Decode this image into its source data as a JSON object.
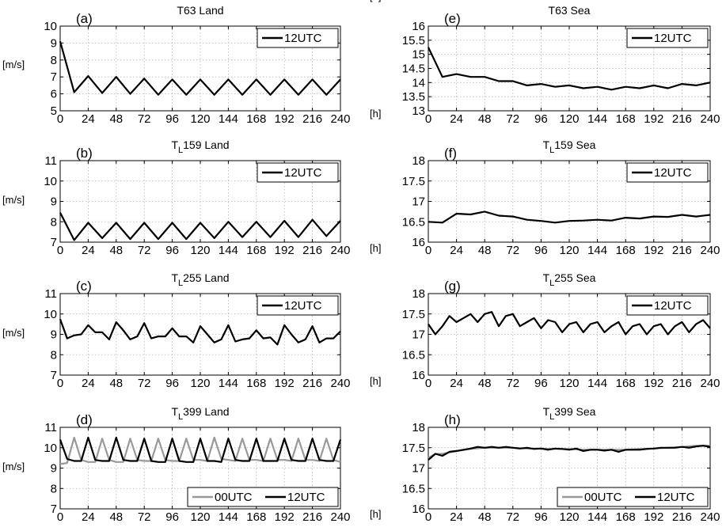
{
  "chart_data": [
    {
      "type": "line",
      "panel_label": "(a)",
      "title_prefix": "",
      "title_sub": "",
      "title_rest": "T63 Land",
      "ylabel": "[m/s]",
      "xlabel": "",
      "ylim": [
        5,
        10
      ],
      "yticks": [
        5,
        6,
        7,
        8,
        9,
        10
      ],
      "xlim": [
        0,
        240
      ],
      "xticks": [
        0,
        24,
        48,
        72,
        96,
        120,
        144,
        168,
        192,
        216,
        240
      ],
      "grid": true,
      "legend_position": "top-right",
      "series": [
        {
          "name": "12UTC",
          "color": "#000000",
          "x": [
            0,
            12,
            24,
            36,
            48,
            60,
            72,
            84,
            96,
            108,
            120,
            132,
            144,
            156,
            168,
            180,
            192,
            204,
            216,
            228,
            240
          ],
          "y": [
            9.1,
            6.1,
            7.05,
            6.05,
            7.0,
            6.0,
            6.9,
            5.95,
            6.85,
            5.95,
            6.85,
            5.95,
            6.85,
            5.95,
            6.85,
            5.95,
            6.85,
            5.95,
            6.85,
            5.95,
            6.85
          ]
        }
      ]
    },
    {
      "type": "line",
      "panel_label": "(b)",
      "title_prefix": "T",
      "title_sub": "L",
      "title_rest": "159 Land",
      "ylabel": "[m/s]",
      "xlabel": "",
      "ylim": [
        7,
        11
      ],
      "yticks": [
        7,
        8,
        9,
        10,
        11
      ],
      "xlim": [
        0,
        240
      ],
      "xticks": [
        0,
        24,
        48,
        72,
        96,
        120,
        144,
        168,
        192,
        216,
        240
      ],
      "grid": true,
      "legend_position": "top-right",
      "series": [
        {
          "name": "12UTC",
          "color": "#000000",
          "x": [
            0,
            12,
            24,
            36,
            48,
            60,
            72,
            84,
            96,
            108,
            120,
            132,
            144,
            156,
            168,
            180,
            192,
            204,
            216,
            228,
            240
          ],
          "y": [
            8.45,
            7.1,
            7.95,
            7.2,
            7.95,
            7.15,
            7.95,
            7.15,
            7.95,
            7.15,
            7.95,
            7.2,
            8.0,
            7.25,
            8.0,
            7.25,
            8.05,
            7.25,
            8.1,
            7.3,
            8.05
          ]
        }
      ]
    },
    {
      "type": "line",
      "panel_label": "(c)",
      "title_prefix": "T",
      "title_sub": "L",
      "title_rest": "255 Land",
      "ylabel": "[m/s]",
      "xlabel": "",
      "ylim": [
        7,
        11
      ],
      "yticks": [
        7,
        8,
        9,
        10,
        11
      ],
      "xlim": [
        0,
        240
      ],
      "xticks": [
        0,
        24,
        48,
        72,
        96,
        120,
        144,
        168,
        192,
        216,
        240
      ],
      "grid": true,
      "legend_position": "top-right",
      "series": [
        {
          "name": "12UTC",
          "color": "#000000",
          "x": [
            0,
            6,
            12,
            18,
            24,
            30,
            36,
            42,
            48,
            54,
            60,
            66,
            72,
            78,
            84,
            90,
            96,
            102,
            108,
            114,
            120,
            126,
            132,
            138,
            144,
            150,
            156,
            162,
            168,
            174,
            180,
            186,
            192,
            198,
            204,
            210,
            216,
            222,
            228,
            234,
            240
          ],
          "y": [
            9.75,
            8.8,
            8.95,
            9.0,
            9.45,
            9.1,
            9.1,
            8.75,
            9.6,
            9.2,
            8.75,
            8.9,
            9.55,
            8.8,
            8.9,
            8.9,
            9.3,
            8.9,
            8.9,
            8.6,
            9.4,
            9.0,
            8.6,
            8.75,
            9.45,
            8.65,
            8.75,
            8.8,
            9.2,
            8.8,
            8.85,
            8.5,
            9.45,
            9.0,
            8.6,
            8.75,
            9.4,
            8.6,
            8.8,
            8.8,
            9.15
          ]
        }
      ]
    },
    {
      "type": "line",
      "panel_label": "(d)",
      "title_prefix": "T",
      "title_sub": "L",
      "title_rest": "399 Land",
      "ylabel": "[m/s]",
      "xlabel": "[h]",
      "ylim": [
        7,
        11
      ],
      "yticks": [
        7,
        8,
        9,
        10,
        11
      ],
      "xlim": [
        0,
        240
      ],
      "xticks": [
        0,
        24,
        48,
        72,
        96,
        120,
        144,
        168,
        192,
        216,
        240
      ],
      "grid": true,
      "legend_position": "bottom-right",
      "series": [
        {
          "name": "00UTC",
          "color": "#999999",
          "x": [
            0,
            6,
            12,
            18,
            24,
            30,
            36,
            42,
            48,
            54,
            60,
            66,
            72,
            78,
            84,
            90,
            96,
            102,
            108,
            114,
            120,
            126,
            132,
            138,
            144,
            150,
            156,
            162,
            168,
            174,
            180,
            186,
            192,
            198,
            204,
            210,
            216,
            222,
            228,
            234,
            240
          ],
          "y": [
            9.2,
            9.25,
            10.5,
            9.4,
            9.3,
            9.3,
            10.45,
            9.4,
            9.3,
            9.3,
            10.45,
            9.4,
            9.35,
            9.35,
            10.45,
            9.4,
            9.35,
            9.35,
            10.45,
            9.4,
            9.4,
            9.35,
            10.5,
            9.45,
            9.4,
            9.35,
            10.45,
            9.4,
            9.4,
            9.35,
            10.45,
            9.4,
            9.4,
            9.35,
            10.45,
            9.4,
            9.4,
            9.35,
            10.45,
            9.4,
            9.3
          ]
        },
        {
          "name": "12UTC",
          "color": "#000000",
          "x": [
            0,
            6,
            12,
            18,
            24,
            30,
            36,
            42,
            48,
            54,
            60,
            66,
            72,
            78,
            84,
            90,
            96,
            102,
            108,
            114,
            120,
            126,
            132,
            138,
            144,
            150,
            156,
            162,
            168,
            174,
            180,
            186,
            192,
            198,
            204,
            210,
            216,
            222,
            228,
            234,
            240
          ],
          "y": [
            10.4,
            9.45,
            9.35,
            9.35,
            10.5,
            9.4,
            9.35,
            9.35,
            10.5,
            9.4,
            9.35,
            9.35,
            10.45,
            9.35,
            9.3,
            9.3,
            10.45,
            9.35,
            9.3,
            9.3,
            10.45,
            9.35,
            9.35,
            9.3,
            10.45,
            9.4,
            9.35,
            9.35,
            10.45,
            9.35,
            9.35,
            9.35,
            10.45,
            9.4,
            9.35,
            9.35,
            10.45,
            9.4,
            9.35,
            9.35,
            10.4
          ]
        }
      ]
    },
    {
      "type": "line",
      "panel_label": "(e)",
      "title_prefix": "",
      "title_sub": "",
      "title_rest": "T63 Sea",
      "ylabel": "",
      "xlabel": "[h]",
      "ylim": [
        13,
        16
      ],
      "yticks": [
        13,
        13.5,
        14,
        14.5,
        15,
        15.5,
        16
      ],
      "xlim": [
        0,
        240
      ],
      "xticks": [
        0,
        24,
        48,
        72,
        96,
        120,
        144,
        168,
        192,
        216,
        240
      ],
      "grid": true,
      "legend_position": "top-right",
      "series": [
        {
          "name": "12UTC",
          "color": "#000000",
          "x": [
            0,
            12,
            24,
            36,
            48,
            60,
            72,
            84,
            96,
            108,
            120,
            132,
            144,
            156,
            168,
            180,
            192,
            204,
            216,
            228,
            240
          ],
          "y": [
            15.25,
            14.2,
            14.3,
            14.2,
            14.2,
            14.05,
            14.05,
            13.9,
            13.95,
            13.85,
            13.9,
            13.8,
            13.85,
            13.75,
            13.85,
            13.8,
            13.9,
            13.8,
            13.95,
            13.9,
            14.0
          ]
        }
      ]
    },
    {
      "type": "line",
      "panel_label": "(f)",
      "title_prefix": "T",
      "title_sub": "L",
      "title_rest": "159 Sea",
      "ylabel": "",
      "xlabel": "[h]",
      "ylim": [
        16,
        18
      ],
      "yticks": [
        16,
        16.5,
        17,
        17.5,
        18
      ],
      "xlim": [
        0,
        240
      ],
      "xticks": [
        0,
        24,
        48,
        72,
        96,
        120,
        144,
        168,
        192,
        216,
        240
      ],
      "grid": true,
      "legend_position": "top-right",
      "series": [
        {
          "name": "12UTC",
          "color": "#000000",
          "x": [
            0,
            12,
            24,
            36,
            48,
            60,
            72,
            84,
            96,
            108,
            120,
            132,
            144,
            156,
            168,
            180,
            192,
            204,
            216,
            228,
            240
          ],
          "y": [
            16.5,
            16.48,
            16.7,
            16.68,
            16.75,
            16.65,
            16.63,
            16.55,
            16.52,
            16.48,
            16.52,
            16.53,
            16.55,
            16.53,
            16.6,
            16.58,
            16.63,
            16.62,
            16.67,
            16.63,
            16.67
          ]
        }
      ]
    },
    {
      "type": "line",
      "panel_label": "(g)",
      "title_prefix": "T",
      "title_sub": "L",
      "title_rest": "255 Sea",
      "ylabel": "",
      "xlabel": "[h]",
      "ylim": [
        16,
        18
      ],
      "yticks": [
        16,
        16.5,
        17,
        17.5,
        18
      ],
      "xlim": [
        0,
        240
      ],
      "xticks": [
        0,
        24,
        48,
        72,
        96,
        120,
        144,
        168,
        192,
        216,
        240
      ],
      "grid": true,
      "legend_position": "top-right",
      "series": [
        {
          "name": "12UTC",
          "color": "#000000",
          "x": [
            0,
            6,
            12,
            18,
            24,
            30,
            36,
            42,
            48,
            54,
            60,
            66,
            72,
            78,
            84,
            90,
            96,
            102,
            108,
            114,
            120,
            126,
            132,
            138,
            144,
            150,
            156,
            162,
            168,
            174,
            180,
            186,
            192,
            198,
            204,
            210,
            216,
            222,
            228,
            234,
            240
          ],
          "y": [
            17.25,
            17.0,
            17.2,
            17.45,
            17.3,
            17.4,
            17.5,
            17.3,
            17.5,
            17.55,
            17.2,
            17.45,
            17.5,
            17.2,
            17.3,
            17.4,
            17.15,
            17.35,
            17.3,
            17.05,
            17.25,
            17.3,
            17.05,
            17.25,
            17.3,
            17.05,
            17.2,
            17.3,
            17.0,
            17.2,
            17.25,
            17.0,
            17.2,
            17.25,
            17.0,
            17.2,
            17.3,
            17.05,
            17.25,
            17.35,
            17.15
          ]
        }
      ]
    },
    {
      "type": "line",
      "panel_label": "(h)",
      "title_prefix": "T",
      "title_sub": "L",
      "title_rest": "399 Sea",
      "ylabel": "",
      "xlabel": "[h]",
      "ylim": [
        16,
        18
      ],
      "yticks": [
        16,
        16.5,
        17,
        17.5,
        18
      ],
      "xlim": [
        0,
        240
      ],
      "xticks": [
        0,
        24,
        48,
        72,
        96,
        120,
        144,
        168,
        192,
        216,
        240
      ],
      "grid": true,
      "legend_position": "bottom-right",
      "series": [
        {
          "name": "00UTC",
          "color": "#999999",
          "x": [
            0,
            6,
            12,
            24,
            36,
            48,
            60,
            72,
            84,
            96,
            108,
            120,
            132,
            144,
            156,
            168,
            180,
            192,
            204,
            216,
            228,
            240
          ],
          "y": [
            17.25,
            17.35,
            17.35,
            17.42,
            17.47,
            17.5,
            17.5,
            17.5,
            17.48,
            17.48,
            17.47,
            17.47,
            17.45,
            17.45,
            17.45,
            17.45,
            17.47,
            17.48,
            17.5,
            17.52,
            17.55,
            17.55
          ]
        },
        {
          "name": "12UTC",
          "color": "#000000",
          "x": [
            0,
            6,
            12,
            18,
            24,
            30,
            36,
            42,
            48,
            54,
            60,
            66,
            72,
            78,
            84,
            90,
            96,
            102,
            108,
            114,
            120,
            126,
            132,
            138,
            144,
            150,
            156,
            162,
            168,
            174,
            180,
            186,
            192,
            198,
            204,
            210,
            216,
            222,
            228,
            234,
            240
          ],
          "y": [
            17.2,
            17.35,
            17.3,
            17.4,
            17.42,
            17.45,
            17.48,
            17.52,
            17.5,
            17.52,
            17.5,
            17.52,
            17.5,
            17.48,
            17.5,
            17.47,
            17.48,
            17.45,
            17.48,
            17.47,
            17.45,
            17.48,
            17.42,
            17.45,
            17.45,
            17.43,
            17.45,
            17.4,
            17.45,
            17.45,
            17.45,
            17.47,
            17.48,
            17.5,
            17.5,
            17.5,
            17.52,
            17.5,
            17.53,
            17.55,
            17.52
          ]
        }
      ]
    }
  ]
}
